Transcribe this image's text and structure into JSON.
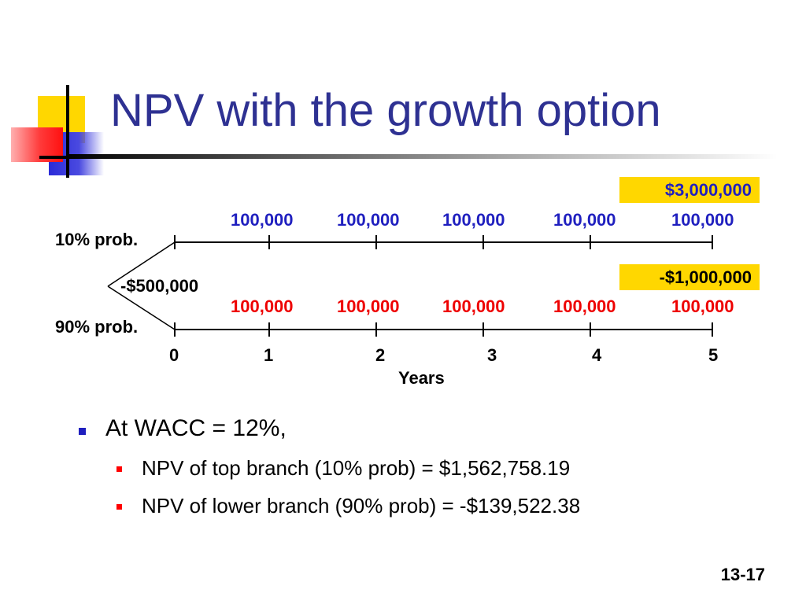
{
  "slide": {
    "title": "NPV with the growth option",
    "slide_number": "13-17"
  },
  "diagram": {
    "top_branch": {
      "prob_label": "10% prob.",
      "cash_flows": [
        "100,000",
        "100,000",
        "100,000",
        "100,000",
        "100,000"
      ],
      "extra_flow": "$3,000,000",
      "color": "#1f1fbf"
    },
    "bottom_branch": {
      "prob_label": "90% prob.",
      "cash_flows": [
        "100,000",
        "100,000",
        "100,000",
        "100,000",
        "100,000"
      ],
      "extra_flow": "-$1,000,000",
      "color": "#ee0000"
    },
    "initial_outlay": "-$500,000",
    "years": [
      "0",
      "1",
      "2",
      "3",
      "4",
      "5"
    ],
    "axis_label": "Years",
    "highlight_color": "#ffd700"
  },
  "bullets": {
    "main": "At WACC = 12%,",
    "sub": [
      "NPV of top branch (10% prob) = $1,562,758.19",
      "NPV of lower branch (90% prob) = -$139,522.38"
    ]
  }
}
